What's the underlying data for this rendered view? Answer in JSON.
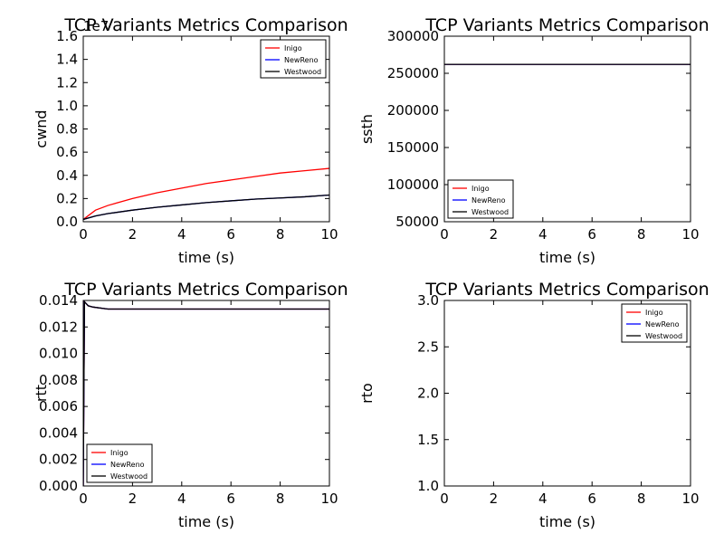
{
  "figure": {
    "background": "#ffffff"
  },
  "chart_data": [
    {
      "type": "line",
      "title": "TCP Variants Metrics Comparison",
      "xlabel": "time (s)",
      "ylabel": "cwnd",
      "offset_text": "1e7",
      "xlim": [
        0,
        10
      ],
      "ylim": [
        0,
        1.6
      ],
      "xticks": [
        "0",
        "2",
        "4",
        "6",
        "8",
        "10"
      ],
      "yticks": [
        "0.0",
        "0.2",
        "0.4",
        "0.6",
        "0.8",
        "1.0",
        "1.2",
        "1.4",
        "1.6"
      ],
      "legend_position": "top-right",
      "x": [
        0,
        0.5,
        1,
        2,
        3,
        4,
        5,
        6,
        7,
        8,
        9,
        10
      ],
      "series": [
        {
          "name": "Inigo",
          "color": "#ff0000",
          "values": [
            0.02,
            0.1,
            0.14,
            0.2,
            0.25,
            0.29,
            0.33,
            0.36,
            0.39,
            0.42,
            0.44,
            0.46
          ]
        },
        {
          "name": "NewReno",
          "color": "#0000ff",
          "values": [
            0.02,
            0.05,
            0.07,
            0.1,
            0.125,
            0.145,
            0.165,
            0.18,
            0.195,
            0.205,
            0.215,
            0.23
          ]
        },
        {
          "name": "Westwood",
          "color": "#000000",
          "values": [
            0.02,
            0.05,
            0.07,
            0.1,
            0.125,
            0.145,
            0.165,
            0.18,
            0.195,
            0.205,
            0.215,
            0.23
          ]
        }
      ]
    },
    {
      "type": "line",
      "title": "TCP Variants Metrics Comparison",
      "xlabel": "time (s)",
      "ylabel": "ssth",
      "xlim": [
        0,
        10
      ],
      "ylim": [
        50000,
        300000
      ],
      "xticks": [
        "0",
        "2",
        "4",
        "6",
        "8",
        "10"
      ],
      "yticks": [
        "50000",
        "100000",
        "150000",
        "200000",
        "250000",
        "300000"
      ],
      "legend_position": "bottom-left",
      "x": [
        0,
        10
      ],
      "series": [
        {
          "name": "Inigo",
          "color": "#ff0000",
          "values": [
            262000,
            262000
          ]
        },
        {
          "name": "NewReno",
          "color": "#0000ff",
          "values": [
            262000,
            262000
          ]
        },
        {
          "name": "Westwood",
          "color": "#000000",
          "values": [
            262000,
            262000
          ]
        }
      ]
    },
    {
      "type": "line",
      "title": "TCP Variants Metrics Comparison",
      "xlabel": "time (s)",
      "ylabel": "rtt",
      "xlim": [
        0,
        10
      ],
      "ylim": [
        0,
        0.014
      ],
      "xticks": [
        "0",
        "2",
        "4",
        "6",
        "8",
        "10"
      ],
      "yticks": [
        "0.000",
        "0.002",
        "0.004",
        "0.006",
        "0.008",
        "0.010",
        "0.012",
        "0.014"
      ],
      "legend_position": "bottom-left",
      "x": [
        0,
        0.05,
        0.1,
        0.2,
        0.4,
        1,
        2,
        4,
        6,
        8,
        10
      ],
      "series": [
        {
          "name": "Inigo",
          "color": "#ff0000",
          "values": [
            0.0,
            0.0139,
            0.0138,
            0.0136,
            0.0135,
            0.01335,
            0.01335,
            0.01335,
            0.01335,
            0.01335,
            0.01335
          ]
        },
        {
          "name": "NewReno",
          "color": "#0000ff",
          "values": [
            0.0,
            0.0139,
            0.0138,
            0.0136,
            0.0135,
            0.01335,
            0.01335,
            0.01335,
            0.01335,
            0.01335,
            0.01335
          ]
        },
        {
          "name": "Westwood",
          "color": "#000000",
          "values": [
            0.0,
            0.0139,
            0.0138,
            0.0136,
            0.0135,
            0.01335,
            0.01335,
            0.01335,
            0.01335,
            0.01335,
            0.01335
          ]
        }
      ]
    },
    {
      "type": "line",
      "title": "TCP Variants Metrics Comparison",
      "xlabel": "time (s)",
      "ylabel": "rto",
      "xlim": [
        0,
        10
      ],
      "ylim": [
        1.0,
        3.0
      ],
      "xticks": [
        "0",
        "2",
        "4",
        "6",
        "8",
        "10"
      ],
      "yticks": [
        "1.0",
        "1.5",
        "2.0",
        "2.5",
        "3.0"
      ],
      "legend_position": "top-right",
      "x": [],
      "series": [
        {
          "name": "Inigo",
          "color": "#ff0000",
          "values": []
        },
        {
          "name": "NewReno",
          "color": "#0000ff",
          "values": []
        },
        {
          "name": "Westwood",
          "color": "#000000",
          "values": []
        }
      ]
    }
  ]
}
